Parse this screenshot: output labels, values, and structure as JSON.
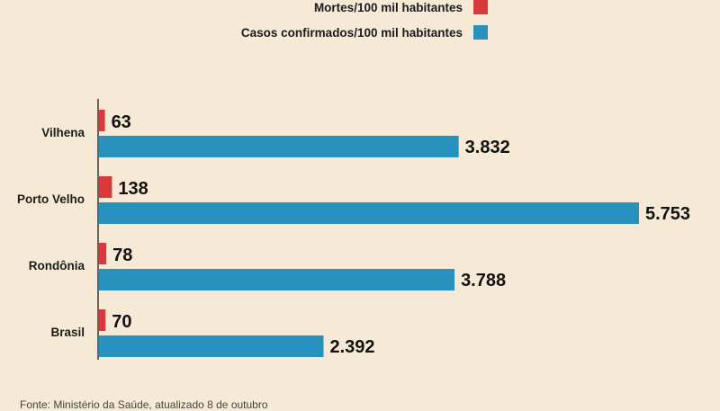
{
  "chart_data": {
    "type": "bar",
    "orientation": "horizontal",
    "categories": [
      "Vilhena",
      "Porto Velho",
      "Rondônia",
      "Brasil"
    ],
    "series": [
      {
        "name": "Mortes/100 mil habitantes",
        "values": [
          63,
          138,
          78,
          70
        ],
        "labels": [
          "63",
          "138",
          "78",
          "70"
        ],
        "color": "#d63a3a"
      },
      {
        "name": "Casos confirmados/100 mil habitantes",
        "values": [
          3832,
          5753,
          3788,
          2392
        ],
        "labels": [
          "3.832",
          "5.753",
          "3.788",
          "2.392"
        ],
        "color": "#2891bd"
      }
    ],
    "legend_position": "top-right",
    "grid": false
  },
  "source_note": "Fonte: Ministério da Saúde, atualizado 8 de outubro",
  "colors": {
    "background": "#f6ead6",
    "axis": "#1b1b1b"
  }
}
